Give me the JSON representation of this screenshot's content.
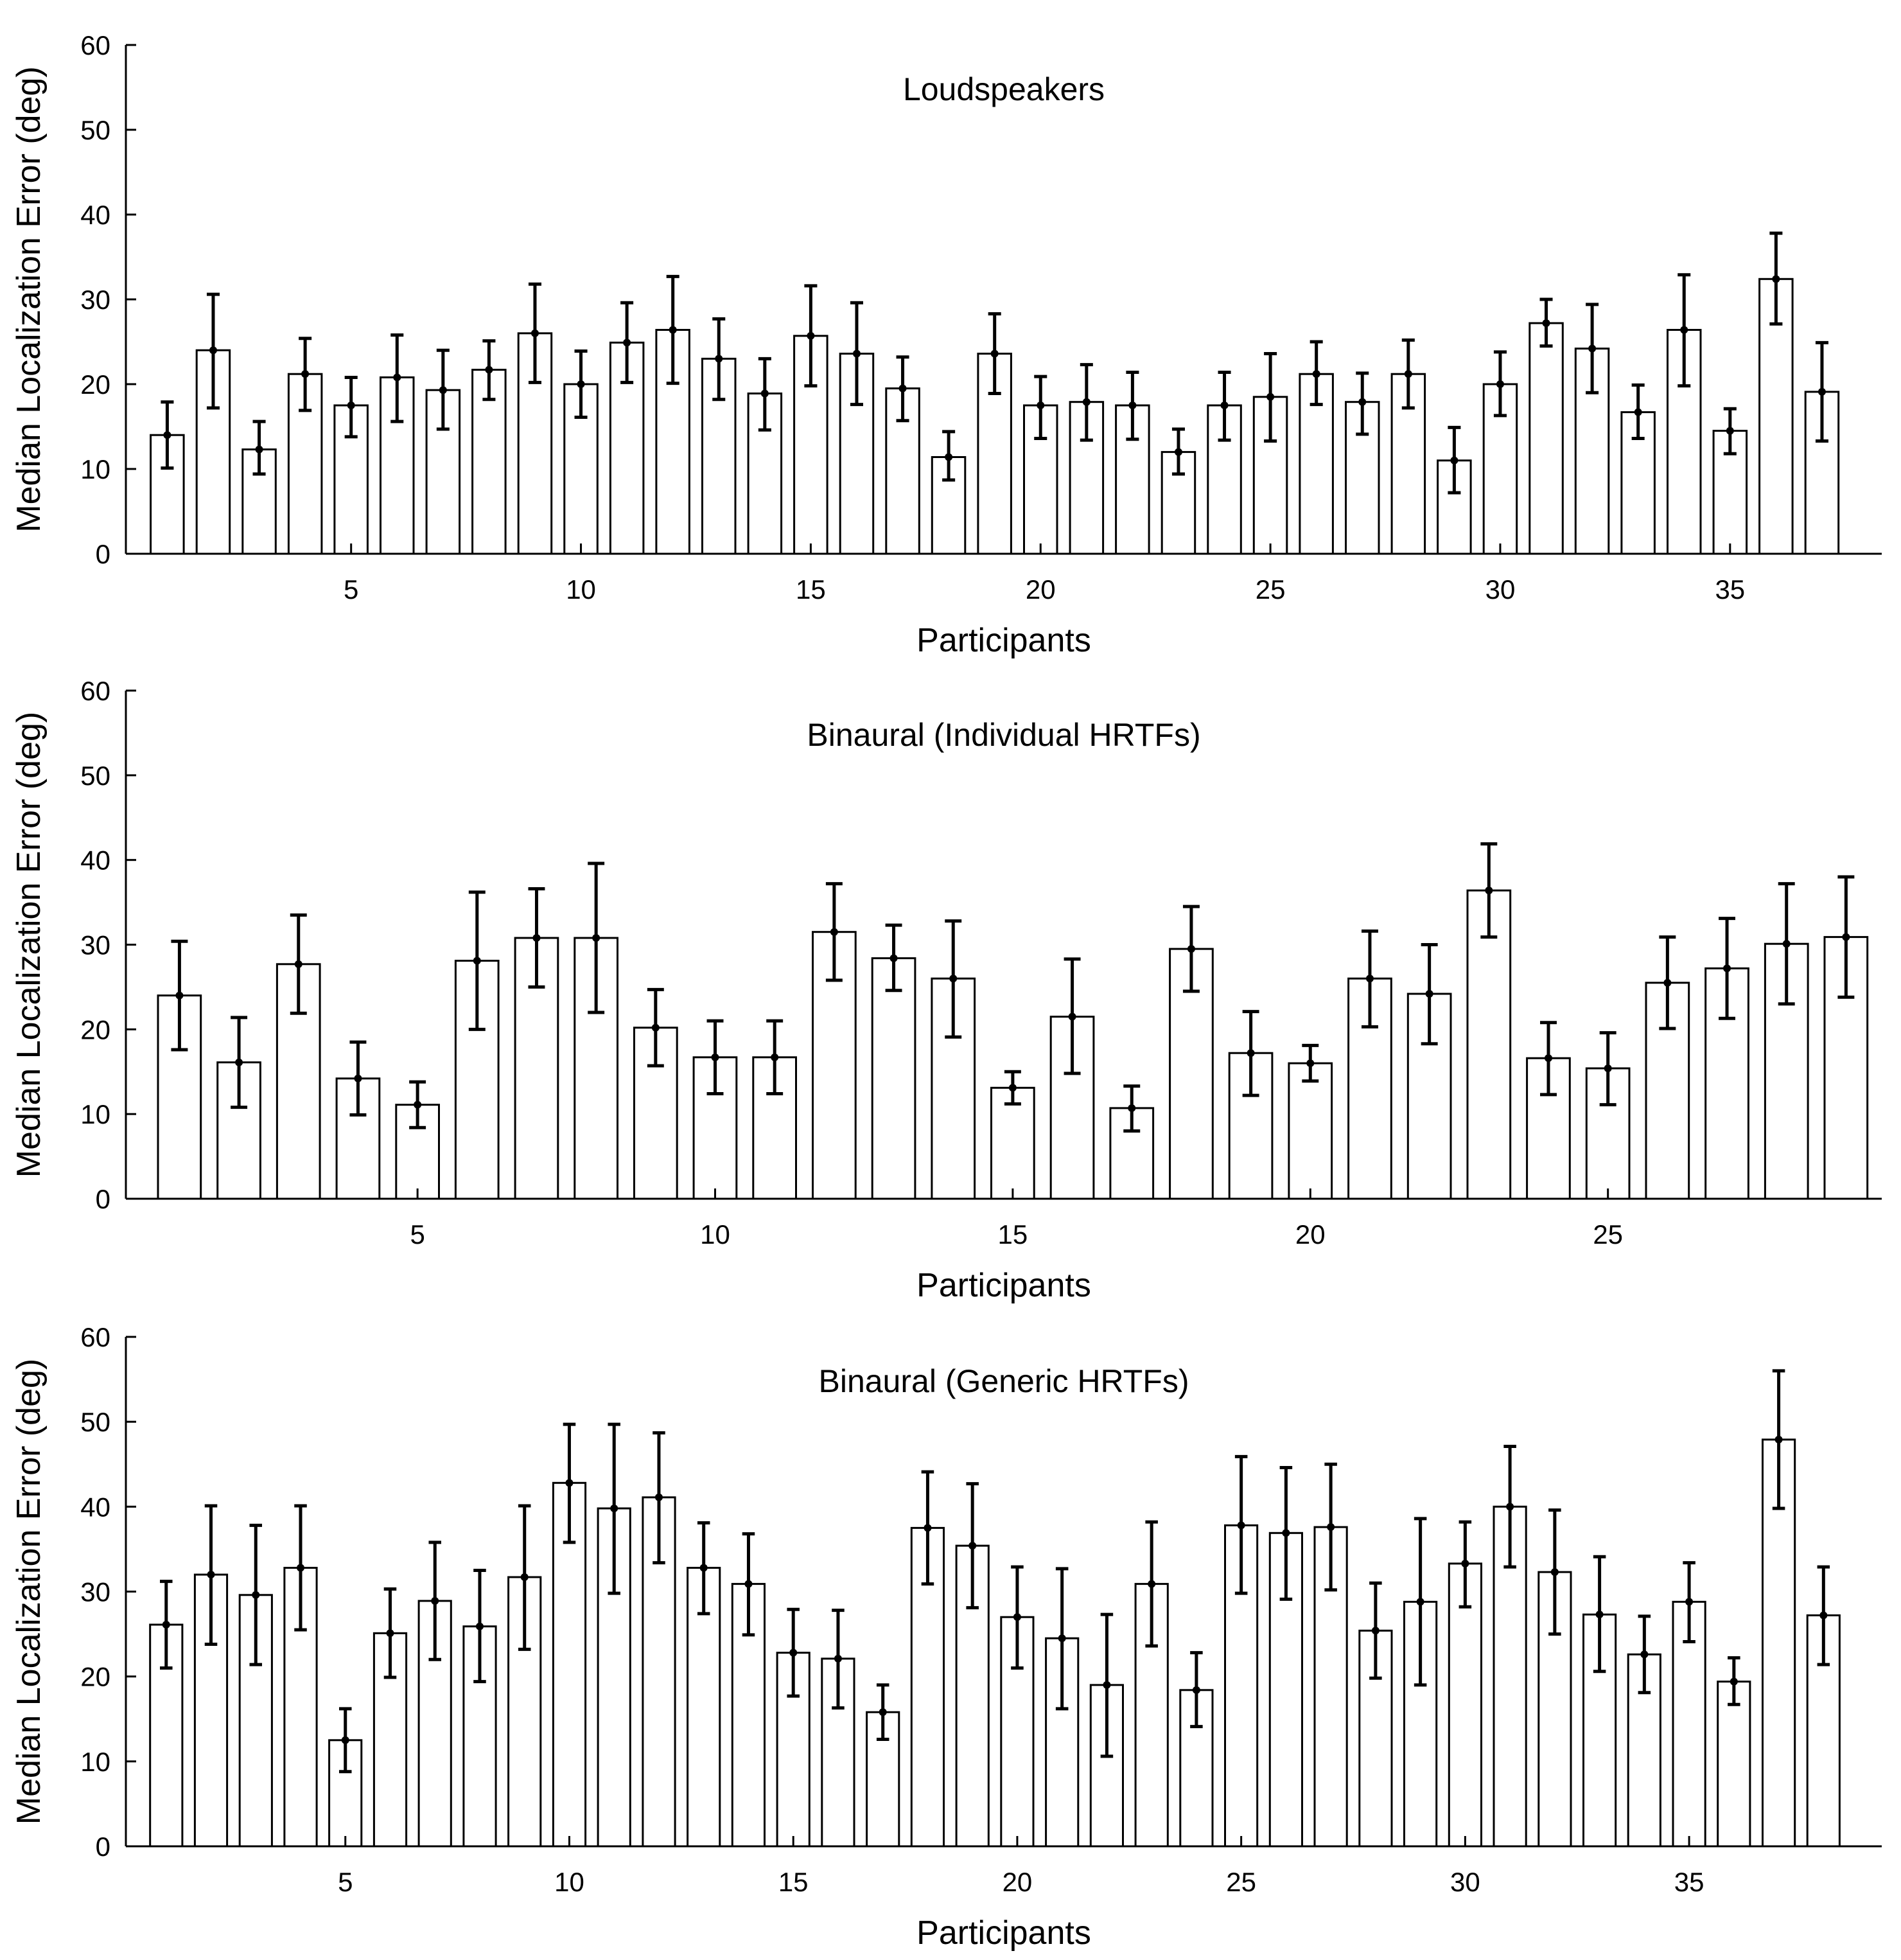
{
  "figure": {
    "colors": {
      "bar_fill": "#ffffff",
      "stroke": "#000000",
      "background": "#ffffff"
    }
  },
  "chart_data": [
    {
      "type": "bar",
      "title": "Loudspeakers",
      "xlabel": "Participants",
      "ylabel": "Median Localization Error (deg)",
      "ylim": [
        0,
        60
      ],
      "yticks": [
        0,
        10,
        20,
        30,
        40,
        50,
        60
      ],
      "xticks": [
        5,
        10,
        15,
        20,
        25,
        30,
        35
      ],
      "xlim": [
        0.1,
        38.3
      ],
      "grid": false,
      "x": [
        1,
        2,
        3,
        4,
        5,
        6,
        7,
        8,
        9,
        10,
        11,
        12,
        13,
        14,
        15,
        16,
        17,
        18,
        19,
        20,
        21,
        22,
        23,
        24,
        25,
        26,
        27,
        28,
        29,
        30,
        31,
        32,
        33,
        34,
        35,
        36,
        37
      ],
      "values": [
        14.0,
        24.0,
        12.3,
        21.2,
        17.5,
        20.8,
        19.3,
        21.7,
        26.0,
        20.0,
        24.9,
        26.4,
        23.0,
        18.9,
        25.7,
        23.6,
        19.5,
        11.4,
        23.6,
        17.5,
        17.9,
        17.5,
        12.0,
        17.5,
        18.5,
        21.2,
        17.9,
        21.2,
        11.0,
        20.0,
        27.2,
        24.2,
        16.7,
        26.4,
        14.5,
        32.4,
        19.1
      ],
      "err_low": [
        10.1,
        17.2,
        9.4,
        16.9,
        13.8,
        15.6,
        14.7,
        18.2,
        20.2,
        16.1,
        20.2,
        20.1,
        18.2,
        14.6,
        19.8,
        17.6,
        15.7,
        8.7,
        18.9,
        13.6,
        13.4,
        13.5,
        9.4,
        13.4,
        13.3,
        17.6,
        14.1,
        17.2,
        7.2,
        16.3,
        24.5,
        19.0,
        13.6,
        19.8,
        11.8,
        27.1,
        13.3
      ],
      "err_high": [
        17.9,
        30.6,
        15.6,
        25.4,
        20.8,
        25.8,
        24.0,
        25.1,
        31.8,
        23.9,
        29.6,
        32.7,
        27.7,
        23.0,
        31.6,
        29.6,
        23.2,
        14.4,
        28.3,
        20.9,
        22.3,
        21.4,
        14.7,
        21.4,
        23.6,
        25.0,
        21.3,
        25.2,
        14.9,
        23.8,
        30.0,
        29.4,
        19.9,
        32.9,
        17.1,
        37.8,
        24.9
      ]
    },
    {
      "type": "bar",
      "title": "Binaural (Individual HRTFs)",
      "xlabel": "Participants",
      "ylabel": "Median Localization Error (deg)",
      "ylim": [
        0,
        60
      ],
      "yticks": [
        0,
        10,
        20,
        30,
        40,
        50,
        60
      ],
      "xticks": [
        5,
        10,
        15,
        20,
        25
      ],
      "xlim": [
        0.1,
        29.6
      ],
      "grid": false,
      "x": [
        1,
        2,
        3,
        4,
        5,
        6,
        7,
        8,
        9,
        10,
        11,
        12,
        13,
        14,
        15,
        16,
        17,
        18,
        19,
        20,
        21,
        22,
        23,
        24,
        25,
        26,
        27,
        28,
        29
      ],
      "values": [
        24.0,
        16.1,
        27.7,
        14.2,
        11.1,
        28.1,
        30.8,
        30.8,
        20.2,
        16.7,
        16.7,
        31.5,
        28.4,
        26.0,
        13.1,
        21.5,
        10.7,
        29.5,
        17.2,
        16.0,
        26.0,
        24.2,
        36.4,
        16.6,
        15.4,
        25.5,
        27.2,
        30.1,
        30.9
      ],
      "err_low": [
        17.6,
        10.8,
        21.9,
        9.9,
        8.4,
        20.0,
        25.0,
        22.0,
        15.7,
        12.4,
        12.4,
        25.8,
        24.6,
        19.1,
        11.2,
        14.8,
        8.0,
        24.5,
        12.2,
        13.9,
        20.3,
        18.3,
        30.9,
        12.3,
        11.1,
        20.1,
        21.3,
        23.0,
        23.8
      ],
      "err_high": [
        30.4,
        21.4,
        33.5,
        18.5,
        13.8,
        36.2,
        36.6,
        39.6,
        24.7,
        21.0,
        21.0,
        37.2,
        32.3,
        32.8,
        15.0,
        28.3,
        13.3,
        34.5,
        22.1,
        18.1,
        31.6,
        30.0,
        41.9,
        20.8,
        19.6,
        30.9,
        33.1,
        37.2,
        38.0
      ]
    },
    {
      "type": "bar",
      "title": "Binaural (Generic HRTFs)",
      "xlabel": "Participants",
      "ylabel": "Median Localization Error (deg)",
      "ylim": [
        0,
        60
      ],
      "yticks": [
        0,
        10,
        20,
        30,
        40,
        50,
        60
      ],
      "xticks": [
        5,
        10,
        15,
        20,
        25,
        30,
        35
      ],
      "xlim": [
        0.1,
        39.3
      ],
      "grid": false,
      "x": [
        1,
        2,
        3,
        4,
        5,
        6,
        7,
        8,
        9,
        10,
        11,
        12,
        13,
        14,
        15,
        16,
        17,
        18,
        19,
        20,
        21,
        22,
        23,
        24,
        25,
        26,
        27,
        28,
        29,
        30,
        31,
        32,
        33,
        34,
        35,
        36,
        37,
        38
      ],
      "values": [
        26.1,
        32.0,
        29.6,
        32.8,
        12.5,
        25.1,
        28.9,
        25.9,
        31.7,
        42.8,
        39.8,
        41.1,
        32.8,
        30.9,
        22.8,
        22.1,
        15.8,
        37.5,
        35.4,
        27.0,
        24.5,
        19.0,
        30.9,
        18.4,
        37.8,
        36.9,
        37.6,
        25.4,
        28.8,
        33.3,
        40.0,
        32.3,
        27.3,
        22.6,
        28.8,
        19.4,
        47.9,
        27.2
      ],
      "err_low": [
        21.0,
        23.8,
        21.4,
        25.5,
        8.8,
        19.9,
        22.0,
        19.4,
        23.2,
        35.8,
        29.8,
        33.4,
        27.4,
        24.9,
        17.7,
        16.3,
        12.6,
        30.9,
        28.1,
        21.0,
        16.2,
        10.6,
        23.6,
        14.1,
        29.8,
        29.1,
        30.2,
        19.8,
        19.0,
        28.2,
        32.9,
        25.0,
        20.6,
        18.1,
        24.1,
        16.7,
        39.8,
        21.4
      ],
      "err_high": [
        31.2,
        40.1,
        37.8,
        40.1,
        16.2,
        30.3,
        35.8,
        32.5,
        40.1,
        49.7,
        49.7,
        48.7,
        38.1,
        36.8,
        27.9,
        27.8,
        19.0,
        44.1,
        42.7,
        32.9,
        32.7,
        27.3,
        38.2,
        22.8,
        45.9,
        44.6,
        45.0,
        31.0,
        38.6,
        38.2,
        47.1,
        39.6,
        34.1,
        27.1,
        33.4,
        22.2,
        56.0,
        32.9
      ]
    }
  ]
}
